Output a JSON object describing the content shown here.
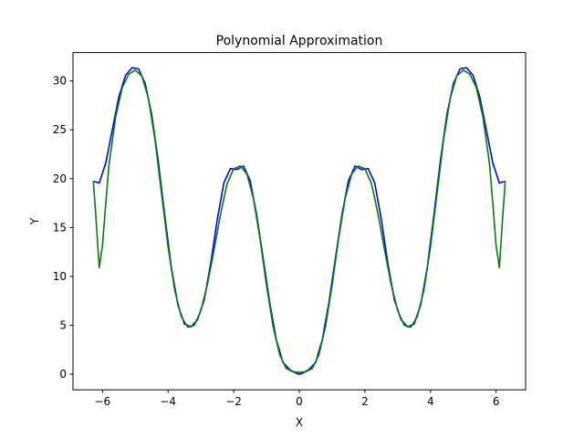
{
  "chart_data": {
    "type": "line",
    "title": "Polynomial Approximation",
    "xlabel": "X",
    "ylabel": "Y",
    "xlim": [
      -6.9,
      6.9
    ],
    "ylim": [
      -1.6,
      32.9
    ],
    "xticks": [
      -6,
      -4,
      -2,
      0,
      2,
      4,
      6
    ],
    "yticks": [
      0,
      5,
      10,
      15,
      20,
      25,
      30
    ],
    "grid": false,
    "series": [
      {
        "color": "#0000ff",
        "x": [
          -6.28,
          -6.1,
          -5.9,
          -5.7,
          -5.5,
          -5.3,
          -5.1,
          -4.9,
          -4.7,
          -4.5,
          -4.3,
          -4.1,
          -3.9,
          -3.7,
          -3.5,
          -3.3,
          -3.1,
          -2.9,
          -2.7,
          -2.5,
          -2.3,
          -2.1,
          -1.9,
          -1.7,
          -1.5,
          -1.3,
          -1.1,
          -0.9,
          -0.7,
          -0.5,
          -0.3,
          -0.1,
          0.0,
          0.1,
          0.3,
          0.5,
          0.7,
          0.9,
          1.1,
          1.3,
          1.5,
          1.7,
          1.9,
          2.1,
          2.3,
          2.5,
          2.7,
          2.9,
          3.1,
          3.3,
          3.5,
          3.7,
          3.9,
          4.1,
          4.3,
          4.5,
          4.7,
          4.9,
          5.1,
          5.3,
          5.5,
          5.7,
          5.9,
          6.1,
          6.28
        ],
        "y": [
          19.74,
          19.55,
          21.61,
          25.02,
          28.4,
          30.55,
          31.35,
          31.23,
          29.74,
          26.55,
          21.78,
          16.17,
          10.87,
          7.06,
          5.13,
          4.84,
          5.59,
          7.58,
          11.34,
          15.84,
          19.56,
          21.04,
          20.93,
          21.29,
          19.81,
          16.29,
          11.83,
          7.26,
          3.5,
          1.21,
          0.49,
          0.1,
          0.0,
          0.1,
          0.49,
          1.21,
          3.5,
          7.26,
          11.83,
          16.29,
          19.81,
          21.29,
          20.93,
          21.04,
          19.56,
          15.84,
          11.34,
          7.58,
          5.59,
          4.84,
          5.13,
          7.06,
          10.87,
          16.17,
          21.78,
          26.55,
          29.74,
          31.23,
          31.35,
          30.55,
          28.4,
          25.02,
          21.61,
          19.55,
          19.74
        ]
      },
      {
        "color": "#008000",
        "x": [
          -6.28,
          -6.2,
          -6.1,
          -6.0,
          -5.9,
          -5.8,
          -5.6,
          -5.4,
          -5.2,
          -5.0,
          -4.8,
          -4.6,
          -4.4,
          -4.2,
          -4.0,
          -3.8,
          -3.6,
          -3.4,
          -3.2,
          -3.0,
          -2.8,
          -2.6,
          -2.4,
          -2.2,
          -2.0,
          -1.8,
          -1.6,
          -1.4,
          -1.2,
          -1.0,
          -0.8,
          -0.6,
          -0.4,
          -0.2,
          0.0,
          0.2,
          0.4,
          0.6,
          0.8,
          1.0,
          1.2,
          1.4,
          1.6,
          1.8,
          2.0,
          2.2,
          2.4,
          2.6,
          2.8,
          3.0,
          3.2,
          3.4,
          3.6,
          3.8,
          4.0,
          4.2,
          4.4,
          4.6,
          4.8,
          5.0,
          5.2,
          5.4,
          5.6,
          5.8,
          5.9,
          6.0,
          6.1,
          6.2,
          6.28
        ],
        "y": [
          19.74,
          16.0,
          10.9,
          13.2,
          17.5,
          21.5,
          26.3,
          29.3,
          30.7,
          31.1,
          30.5,
          28.2,
          24.0,
          18.5,
          13.0,
          8.6,
          5.9,
          4.8,
          5.0,
          6.5,
          9.2,
          12.7,
          16.4,
          19.5,
          21.0,
          21.3,
          20.5,
          18.0,
          13.9,
          9.1,
          4.9,
          2.0,
          0.6,
          0.25,
          0.2,
          0.25,
          0.6,
          2.0,
          4.9,
          9.1,
          13.9,
          18.0,
          20.5,
          21.3,
          21.0,
          19.5,
          16.4,
          12.7,
          9.2,
          6.5,
          5.0,
          4.8,
          5.9,
          8.6,
          13.0,
          18.5,
          24.0,
          28.2,
          30.5,
          31.1,
          30.7,
          29.3,
          26.3,
          21.5,
          17.5,
          13.2,
          10.9,
          16.0,
          19.74
        ]
      }
    ]
  }
}
